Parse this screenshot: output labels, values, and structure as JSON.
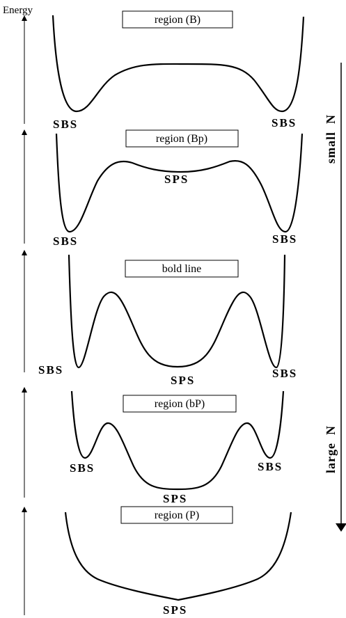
{
  "energy_axis_label": "Energy",
  "panels": [
    {
      "region_label": "region (B)",
      "left_label": "SBS",
      "right_label": "SBS",
      "center_label": ""
    },
    {
      "region_label": "region (Bp)",
      "left_label": "SBS",
      "right_label": "SBS",
      "center_label": "SPS"
    },
    {
      "region_label": "bold line",
      "left_label": "SBS",
      "right_label": "SBS",
      "center_label": "SPS"
    },
    {
      "region_label": "region (bP)",
      "left_label": "SBS",
      "right_label": "SBS",
      "center_label": "SPS"
    },
    {
      "region_label": "region (P)",
      "left_label": "",
      "right_label": "",
      "center_label": "SPS"
    }
  ],
  "side_axis": {
    "top_label": "small  N",
    "bottom_label": "large  N"
  },
  "colors": {
    "ink": "#000000",
    "background": "#ffffff"
  }
}
